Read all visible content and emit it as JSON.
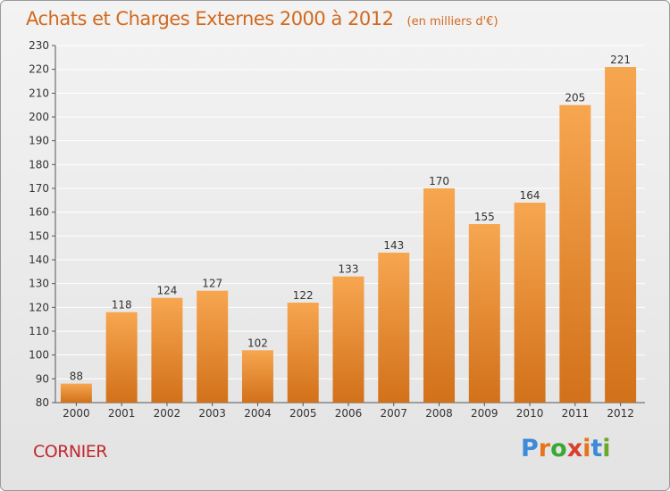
{
  "header": {
    "title": "Achats et Charges Externes 2000 à 2012",
    "unit": "(en milliers d'€)"
  },
  "footer": {
    "commune": "CORNIER",
    "logo_text": "Proxiti",
    "logo_colors": [
      "#3d8bd8",
      "#e8731a",
      "#3aa835",
      "#d8402c",
      "#e8731a",
      "#3d8bd8",
      "#6aa82c"
    ]
  },
  "colors": {
    "bar_light": "#f7a650",
    "bar_dark": "#d2711a",
    "title": "#d2691e",
    "commune": "#c0282e",
    "grid": "#ffffff"
  },
  "chart_data": {
    "type": "bar",
    "title": "Achats et Charges Externes 2000 à 2012",
    "subtitle": "(en milliers d'€)",
    "xlabel": "",
    "ylabel": "",
    "categories": [
      "2000",
      "2001",
      "2002",
      "2003",
      "2004",
      "2005",
      "2006",
      "2007",
      "2008",
      "2009",
      "2010",
      "2011",
      "2012"
    ],
    "values": [
      88,
      118,
      124,
      127,
      102,
      122,
      133,
      143,
      170,
      155,
      164,
      205,
      221
    ],
    "ylim": [
      80,
      230
    ],
    "yticks": [
      80,
      90,
      100,
      110,
      120,
      130,
      140,
      150,
      160,
      170,
      180,
      190,
      200,
      210,
      220,
      230
    ],
    "grid": true,
    "legend": "none"
  }
}
